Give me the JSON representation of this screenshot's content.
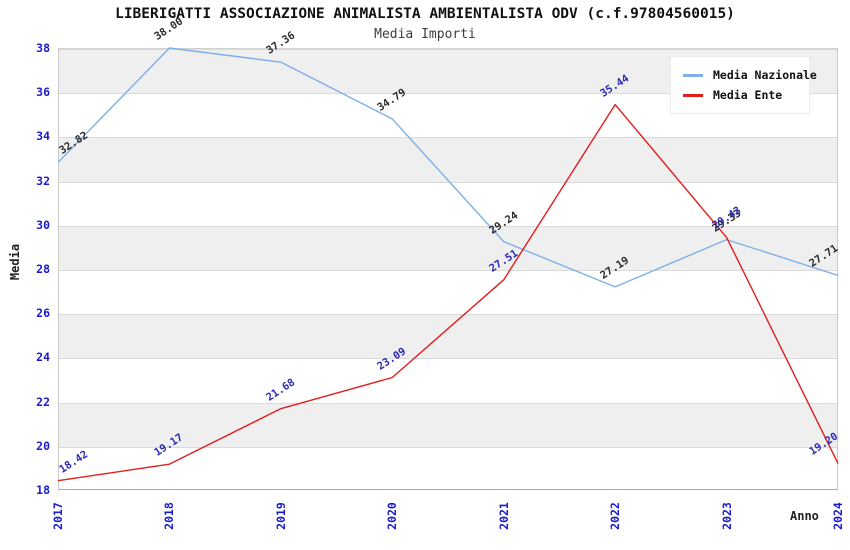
{
  "title": "LIBERIGATTI ASSOCIAZIONE ANIMALISTA AMBIENTALISTA ODV (c.f.97804560015)",
  "subtitle": "Media Importi",
  "colors": {
    "band_fill": "#efefef",
    "gridline": "#dadada",
    "tick_label": "#1a1acd",
    "nazionale_line": "#7db1e8",
    "ente_line": "#e01e1e",
    "nazionale_point_label": "#2b2b2b",
    "ente_point_label": "#2a2ab4"
  },
  "chart_data": {
    "type": "line",
    "x": [
      "2017",
      "2018",
      "2019",
      "2020",
      "2021",
      "2022",
      "2023",
      "2024"
    ],
    "xlabel": "Anno",
    "ylabel": "Media",
    "ylim": [
      18,
      38
    ],
    "ytick_step": 2,
    "yticks": [
      18,
      20,
      22,
      24,
      26,
      28,
      30,
      32,
      34,
      36,
      38
    ],
    "grid": "horizontal-bands-alternating",
    "legend_position": "top-right",
    "series": [
      {
        "name": "Media Nazionale",
        "color": "#7db1e8",
        "label_color": "#2b2b2b",
        "values": [
          32.82,
          38.0,
          37.36,
          34.79,
          29.24,
          27.19,
          29.33,
          27.71
        ]
      },
      {
        "name": "Media Ente",
        "color": "#e01e1e",
        "label_color": "#2a2ab4",
        "values": [
          18.42,
          19.17,
          21.68,
          23.09,
          27.51,
          35.44,
          29.43,
          19.2
        ]
      }
    ]
  }
}
